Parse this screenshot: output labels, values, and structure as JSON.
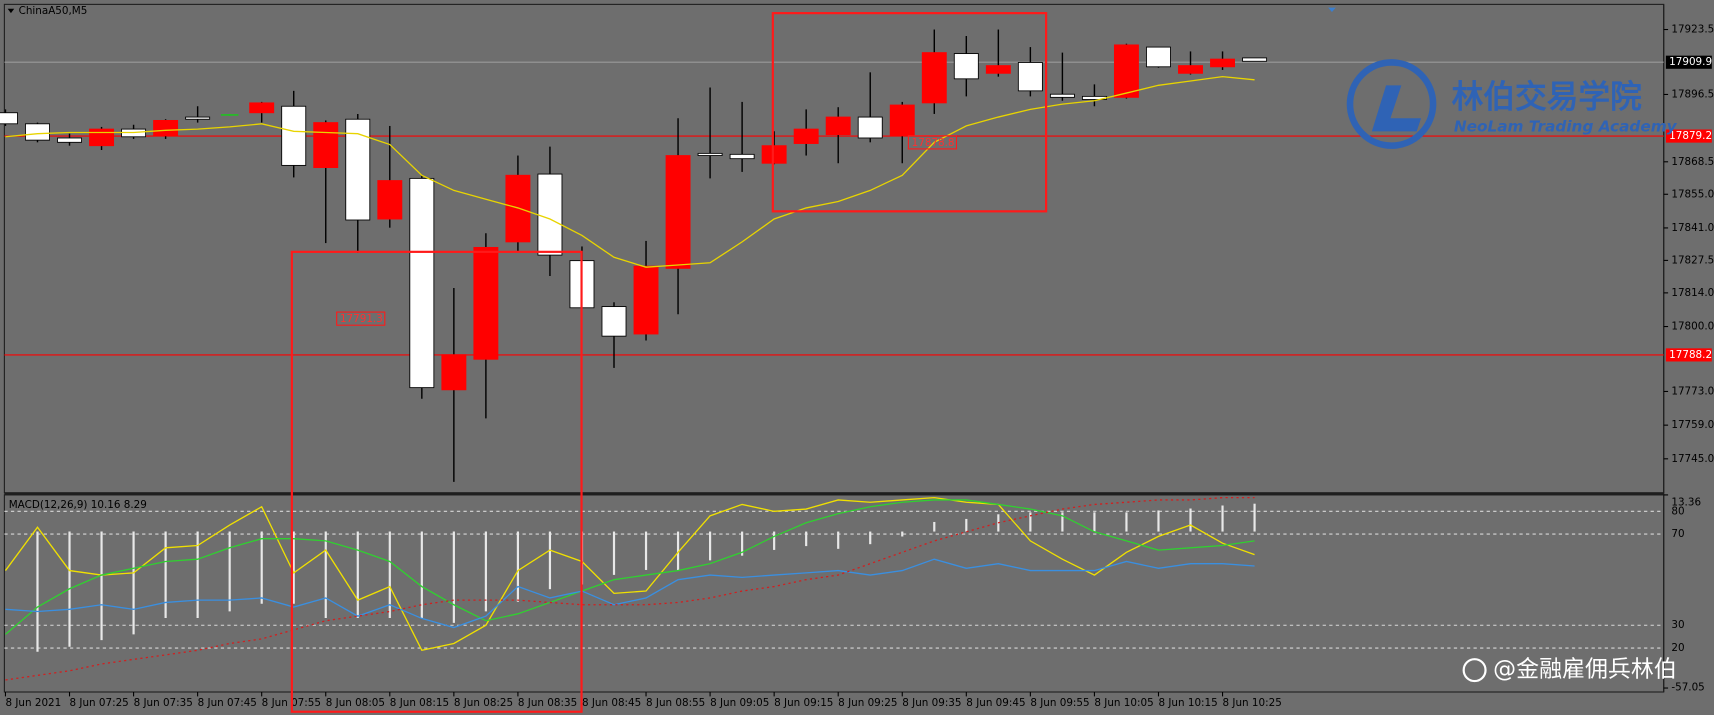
{
  "chart_data": [
    {
      "type": "candlestick",
      "title": "ChinaA50,M5",
      "categories": [
        "8 Jun 2021",
        null,
        "8 Jun 07:25",
        null,
        "8 Jun 07:35",
        null,
        "8 Jun 07:45",
        null,
        "8 Jun 07:55",
        null,
        "8 Jun 08:05",
        null,
        "8 Jun 08:15",
        null,
        "8 Jun 08:25",
        null,
        "8 Jun 08:35",
        null,
        "8 Jun 08:45",
        null,
        "8 Jun 08:55",
        null,
        "8 Jun 09:05",
        null,
        "8 Jun 09:15",
        null,
        "8 Jun 09:25",
        null,
        "8 Jun 09:35",
        null,
        "8 Jun 09:45",
        null,
        "8 Jun 09:55",
        null,
        "8 Jun 10:05",
        null,
        "8 Jun 10:15",
        null,
        "8 Jun 10:25",
        null
      ],
      "open": [
        17888.9,
        17884.3,
        17878.4,
        17875.2,
        17882.1,
        17879.3,
        17887.1,
        17888.0,
        17888.9,
        17891.6,
        17866.1,
        17886.2,
        17844.7,
        17861.6,
        17773.7,
        17786.4,
        17835.2,
        17863.4,
        17827.4,
        17808.3,
        17796.9,
        17824.2,
        17872.0,
        17871.6,
        17867.9,
        17876.1,
        17879.8,
        17887.1,
        17879.3,
        17893.0,
        17913.5,
        17905.3,
        17909.8,
        17896.6,
        17895.7,
        17895.3,
        17916.2,
        17905.3,
        17908.0,
        17911.7
      ],
      "high": [
        17890.3,
        17884.8,
        17880.2,
        17883.0,
        17883.9,
        17886.2,
        17891.6,
        17888.4,
        17893.4,
        17898.0,
        17885.7,
        17888.4,
        17883.4,
        17862.9,
        17816.0,
        17838.8,
        17871.1,
        17874.8,
        17833.3,
        17810.1,
        17835.6,
        17886.6,
        17899.4,
        17893.4,
        17881.2,
        17890.3,
        17891.2,
        17905.7,
        17893.4,
        17923.5,
        17920.8,
        17923.5,
        17916.2,
        17913.9,
        17900.7,
        17917.6,
        17916.2,
        17914.4,
        17914.4,
        17911.7
      ],
      "low": [
        17883.4,
        17876.6,
        17875.2,
        17873.4,
        17878.0,
        17878.0,
        17884.8,
        17887.6,
        17884.8,
        17862.0,
        17834.7,
        17830.6,
        17841.1,
        17770.0,
        17735.4,
        17761.8,
        17831.1,
        17821.0,
        17807.8,
        17782.8,
        17794.2,
        17805.1,
        17861.6,
        17864.3,
        17867.5,
        17871.1,
        17867.9,
        17876.6,
        17867.9,
        17888.4,
        17895.7,
        17903.9,
        17895.7,
        17893.9,
        17891.6,
        17894.8,
        17907.6,
        17904.8,
        17906.7,
        17910.3
      ],
      "close": [
        17884.3,
        17877.5,
        17876.6,
        17882.1,
        17878.9,
        17885.7,
        17886.2,
        17888.0,
        17893.0,
        17867.0,
        17884.8,
        17844.3,
        17860.7,
        17774.6,
        17788.3,
        17832.9,
        17862.9,
        17829.7,
        17807.8,
        17796.0,
        17825.1,
        17871.1,
        17871.1,
        17869.8,
        17875.2,
        17882.1,
        17887.1,
        17878.4,
        17892.1,
        17913.9,
        17903.0,
        17908.5,
        17898.0,
        17895.3,
        17894.4,
        17917.1,
        17908.0,
        17908.5,
        17911.2,
        17910.3
      ],
      "up_color": "#ff0000",
      "down_color": "#ffffff",
      "doji_color": "#22c022",
      "series": [
        {
          "color": "#e8d400",
          "values": [
            17878.9,
            17880.2,
            17880.7,
            17880.7,
            17880.7,
            17881.6,
            17882.1,
            17883.0,
            17884.3,
            17881.2,
            17880.7,
            17880.2,
            17875.7,
            17862.9,
            17856.6,
            17852.9,
            17849.3,
            17844.7,
            17837.9,
            17828.8,
            17824.7,
            17825.6,
            17826.5,
            17835.2,
            17844.7,
            17849.3,
            17852.0,
            17856.6,
            17862.9,
            17876.6,
            17883.4,
            17887.1,
            17890.3,
            17892.5,
            17893.9,
            17897.1,
            17900.3,
            17902.1,
            17903.9,
            17902.6
          ]
        }
      ],
      "ylim": [
        17730.9,
        17933.5
      ],
      "yticks": [
        17923.5,
        17896.5,
        17868.5,
        {
          "value": 17855,
          "label": "17855.0"
        },
        {
          "value": 17841,
          "label": "17841.0"
        },
        17827.5,
        {
          "value": 17814,
          "label": "17814.0"
        },
        {
          "value": 17800,
          "label": "17800.0"
        },
        {
          "value": 17773,
          "label": "17773.0"
        },
        {
          "value": 17759,
          "label": "17759.0"
        },
        {
          "value": 17745,
          "label": "17745.0"
        }
      ],
      "hlines": [
        {
          "value": 17879.2,
          "label": "17879.2",
          "color": "#ff0000"
        },
        {
          "value": 17788.2,
          "label": "17788.2",
          "color": "#ff0000"
        }
      ],
      "current_price": {
        "value": 17909.9,
        "label": "17909.9"
      },
      "annotations": [
        "17791.3",
        "17878.8"
      ]
    },
    {
      "type": "line",
      "title": "MACD(12,26,9) 10.16 8.29",
      "ylim": [
        0.7,
        87.2
      ],
      "yticks": [
        20,
        30,
        70,
        80
      ],
      "y2lim": [
        -58.5,
        13.36
      ],
      "y2ticks": [
        13.36,
        -57.05
      ],
      "series": [
        {
          "type": "bar",
          "axis": "y2",
          "color": "#e8e8e8",
          "values": [
            null,
            -43.8,
            -42.0,
            -39.6,
            -37.5,
            -31.5,
            -31.5,
            -29.1,
            -26.3,
            -26.3,
            -31.5,
            -31.5,
            -31.5,
            -31.5,
            -33.3,
            -29.1,
            -25.6,
            -21.0,
            -19.3,
            -15.8,
            -14.0,
            -14.0,
            -10.5,
            -8.8,
            -6.7,
            -5.3,
            -6.3,
            -4.6,
            -1.8,
            3.5,
            4.6,
            6.3,
            7.0,
            7.0,
            7.0,
            7.0,
            7.7,
            8.4,
            9.5,
            10.16
          ]
        },
        {
          "color": "#f0e000",
          "values": [
            54,
            73,
            54,
            52,
            53,
            64,
            65,
            74,
            82,
            53,
            63,
            41,
            47,
            19,
            22,
            30,
            54,
            63,
            58,
            44,
            45,
            62,
            78,
            83,
            80,
            81,
            85,
            84,
            85,
            86,
            84,
            83,
            67,
            59,
            52,
            62,
            69,
            74,
            66,
            61
          ]
        },
        {
          "color": "#30d030",
          "values": [
            26,
            38,
            46,
            52,
            55,
            58,
            59,
            64,
            68,
            68,
            67,
            63,
            58,
            47,
            39,
            32,
            35,
            40,
            45,
            50,
            52,
            54,
            57,
            62,
            69,
            75,
            79,
            82,
            84,
            85,
            85,
            83,
            81,
            78,
            71,
            67,
            63,
            64,
            65,
            67
          ]
        },
        {
          "color": "#3a8fe0",
          "values": [
            37,
            36,
            37,
            39,
            37,
            40,
            41,
            41,
            42,
            38,
            42,
            34,
            39,
            33,
            29,
            34,
            47,
            42,
            45,
            39,
            42,
            50,
            52,
            51,
            52,
            53,
            54,
            52,
            54,
            59,
            55,
            57,
            54,
            54,
            54,
            58,
            55,
            57,
            57,
            56
          ]
        },
        {
          "color": "#d02020",
          "dash": true,
          "values": [
            6,
            8,
            10,
            13,
            15,
            17,
            19,
            22,
            24,
            28,
            32,
            34,
            36,
            39,
            41,
            41,
            41,
            40,
            39,
            39,
            39,
            40,
            42,
            45,
            47,
            50,
            52,
            57,
            62,
            67,
            71,
            75,
            78,
            81,
            83,
            84,
            85,
            85,
            86,
            86
          ]
        }
      ]
    }
  ],
  "watermark": {
    "title": "林伯交易学院",
    "subtitle": "NeoLam Trading Academy",
    "credit": "@金融雇佣兵林伯"
  }
}
